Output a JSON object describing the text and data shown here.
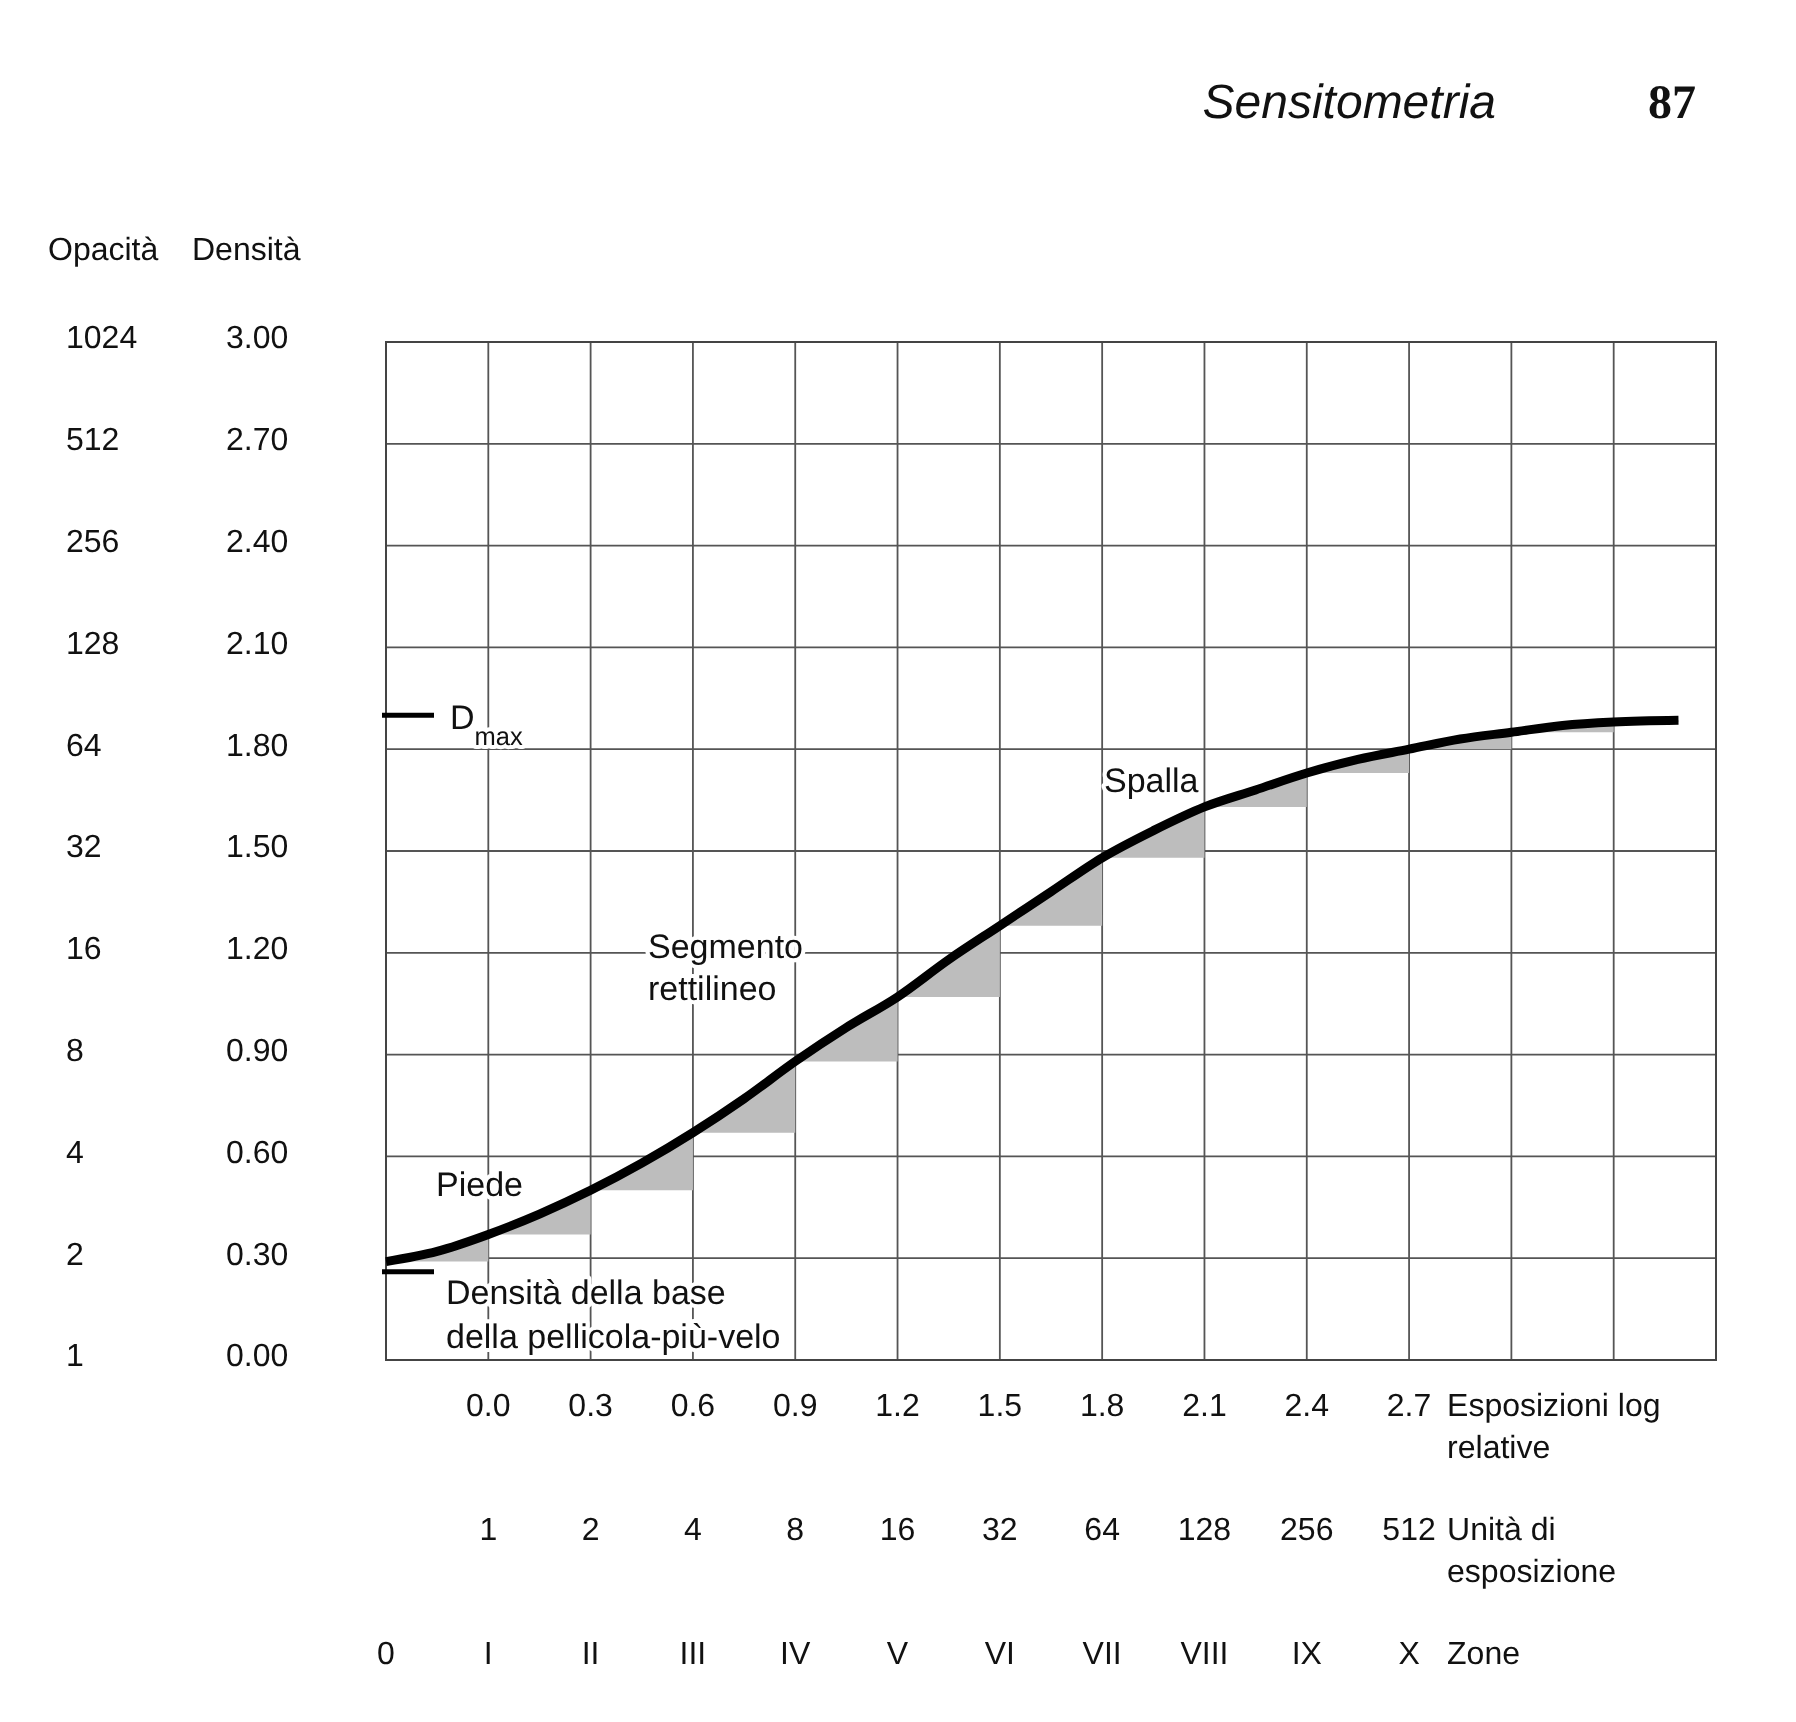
{
  "chart_data": {
    "type": "line",
    "title": "Sensitometria",
    "xlabel": "Esposizioni log relative",
    "ylabel": "Densità",
    "y2label": "Opacità",
    "xlim": [
      -0.3,
      3.6
    ],
    "ylim": [
      0,
      3
    ],
    "xticks": [
      {
        "value": -0.3,
        "label": null
      },
      {
        "value": 0,
        "label": "0.0"
      },
      0.3,
      0.6,
      0.9,
      1.2,
      1.5,
      1.8,
      2.1,
      2.4,
      2.7,
      {
        "value": 3,
        "label": null
      },
      {
        "value": 3.3,
        "label": null
      }
    ],
    "yticks": [
      {
        "value": 0,
        "label": "0.00"
      },
      {
        "value": 0.3,
        "label": "0.30"
      },
      {
        "value": 0.6,
        "label": "0.60"
      },
      {
        "value": 0.9,
        "label": "0.90"
      },
      {
        "value": 1.2,
        "label": "1.20"
      },
      {
        "value": 1.5,
        "label": "1.50"
      },
      {
        "value": 1.8,
        "label": "1.80"
      },
      {
        "value": 2.1,
        "label": "2.10"
      },
      {
        "value": 2.4,
        "label": "2.40"
      },
      {
        "value": 2.7,
        "label": "2.70"
      },
      {
        "value": 3,
        "label": "3.00"
      }
    ],
    "y2lim": [
      1,
      1024
    ],
    "y2ticks": [
      1,
      2,
      4,
      8,
      16,
      32,
      64,
      128,
      256,
      512,
      1024
    ],
    "log": "y2",
    "grid": true,
    "line_style": "solid",
    "x": [
      -0.3,
      -0.15,
      0,
      0.15,
      0.3,
      0.45,
      0.6,
      0.75,
      0.9,
      1.05,
      1.2,
      1.35,
      1.5,
      1.65,
      1.8,
      1.95,
      2.1,
      2.25,
      2.4,
      2.55,
      2.7,
      2.85,
      3,
      3.15,
      3.3,
      3.49
    ],
    "series": [
      {
        "color": "#000000",
        "values": [
          0.29,
          0.32,
          0.37,
          0.43,
          0.5,
          0.58,
          0.67,
          0.77,
          0.88,
          0.98,
          1.07,
          1.18,
          1.28,
          1.38,
          1.48,
          1.56,
          1.63,
          1.68,
          1.73,
          1.77,
          1.8,
          1.83,
          1.85,
          1.87,
          1.88,
          1.885
        ]
      }
    ],
    "ref_lines": [
      {
        "axis": "y",
        "value": 1.9,
        "label": "D$_{max}$",
        "color": "#000000"
      },
      {
        "axis": "y",
        "value": 0.26,
        "label": "Densità della base della pellicola-più-velo",
        "color": "#000000"
      }
    ],
    "annotations": [
      "87",
      "Piede",
      "Segmento rettilineo",
      "Spalla",
      "1",
      "2",
      "4",
      "8",
      "16",
      "32",
      "64",
      "128",
      "256",
      "512",
      "Unità di esposizione",
      "0",
      "I",
      "II",
      "III",
      "IV",
      "V",
      "VI",
      "VII",
      "VIII",
      "IX",
      "X",
      "Zone"
    ]
  }
}
